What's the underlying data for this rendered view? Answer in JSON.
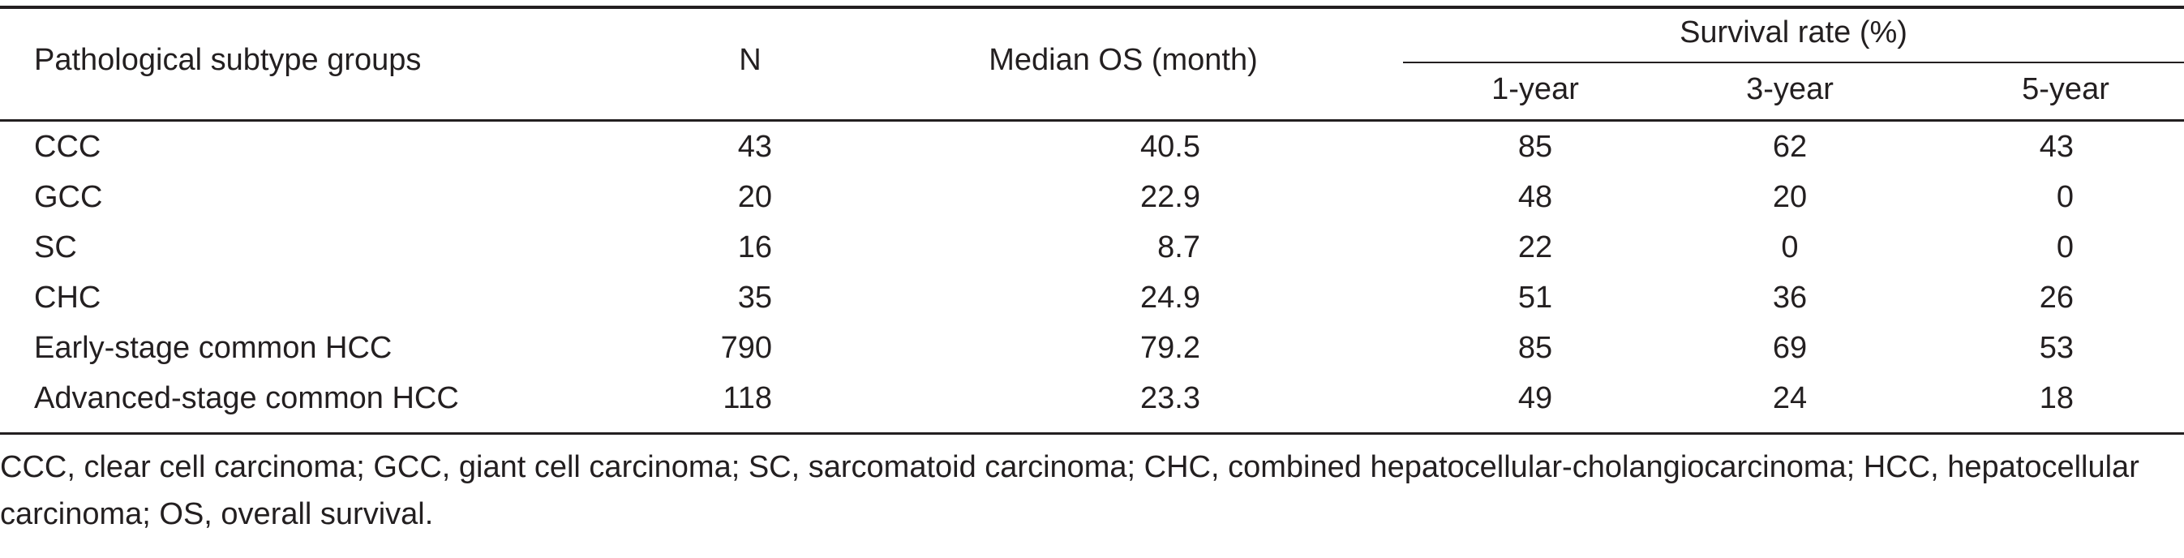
{
  "table": {
    "headers": {
      "subtype": "Pathological subtype groups",
      "n": "N",
      "median_os": "Median OS (month)",
      "survival_group": "Survival rate (%)",
      "year1": "1-year",
      "year3": "3-year",
      "year5": "5-year"
    },
    "rows": [
      {
        "subtype": "CCC",
        "n": "43",
        "median_os": "40.5",
        "year1": "85",
        "year3": "62",
        "year5": "43"
      },
      {
        "subtype": "GCC",
        "n": "20",
        "median_os": "22.9",
        "year1": "48",
        "year3": "20",
        "year5": "0"
      },
      {
        "subtype": "SC",
        "n": "16",
        "median_os": "8.7",
        "year1": "22",
        "year3": "0",
        "year5": "0"
      },
      {
        "subtype": "CHC",
        "n": "35",
        "median_os": "24.9",
        "year1": "51",
        "year3": "36",
        "year5": "26"
      },
      {
        "subtype": "Early-stage common HCC",
        "n": "790",
        "median_os": "79.2",
        "year1": "85",
        "year3": "69",
        "year5": "53"
      },
      {
        "subtype": "Advanced-stage common HCC",
        "n": "118",
        "median_os": "23.3",
        "year1": "49",
        "year3": "24",
        "year5": "18"
      }
    ],
    "footnote": "CCC, clear cell carcinoma; GCC, giant cell carcinoma; SC, sarcomatoid carcinoma; CHC, combined hepatocellular-cholangiocarcinoma; HCC, hepatocellular carcinoma; OS, overall survival."
  }
}
